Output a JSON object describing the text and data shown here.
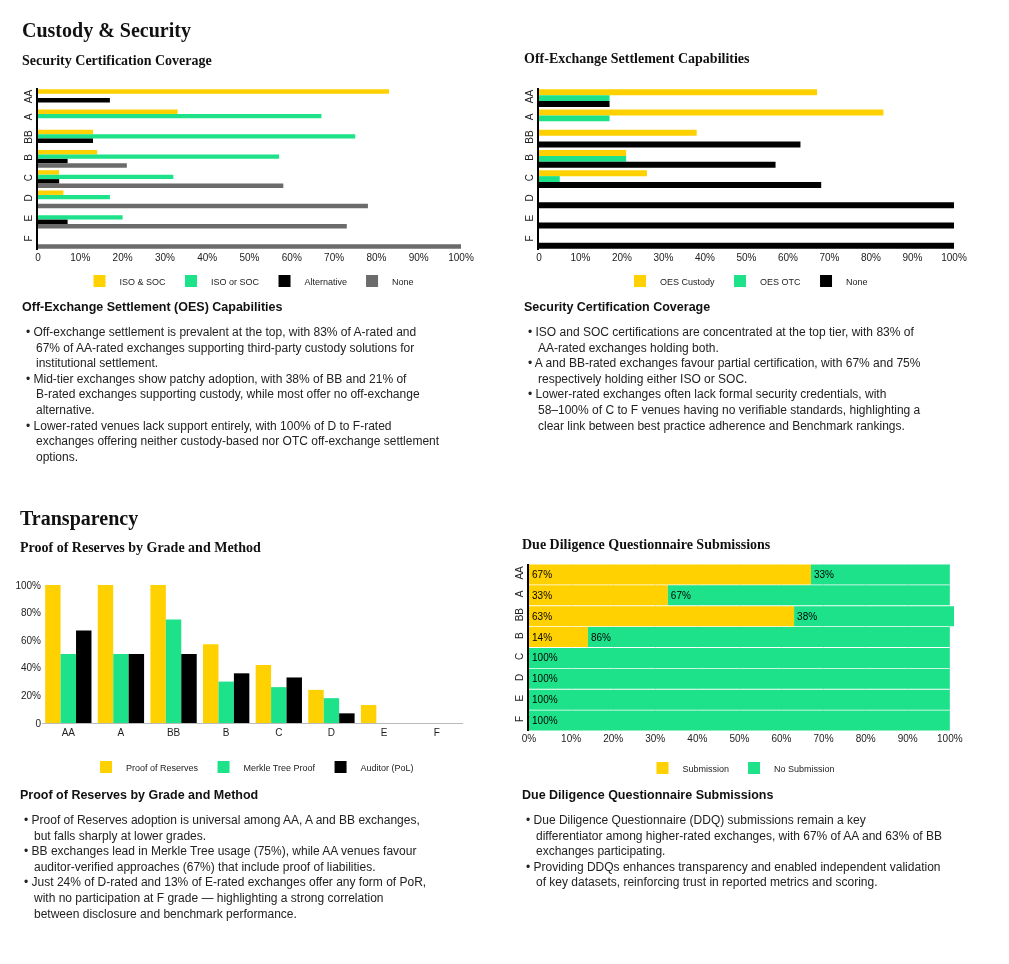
{
  "chart_data": [
    {
      "type": "bar",
      "orientation": "horizontal",
      "title": "Custody & Security",
      "subtitle": "Security Certification Coverage",
      "categories": [
        "AA",
        "A",
        "BB",
        "B",
        "C",
        "D",
        "E",
        "F"
      ],
      "series": [
        {
          "name": "ISO & SOC",
          "color": "#ffd100",
          "values": [
            83,
            33,
            13,
            14,
            5,
            6,
            null,
            null
          ]
        },
        {
          "name": "ISO or SOC",
          "color": "#1de28a",
          "values": [
            null,
            67,
            75,
            57,
            32,
            17,
            20,
            null
          ]
        },
        {
          "name": "Alternative",
          "color": "#000000",
          "values": [
            17,
            null,
            13,
            7,
            5,
            null,
            7,
            null
          ]
        },
        {
          "name": "None",
          "color": "#6b6b6b",
          "values": [
            null,
            null,
            null,
            21,
            58,
            78,
            73,
            100
          ]
        }
      ],
      "xlim": [
        0,
        100
      ],
      "xticks": [
        0,
        {
          "value": 10,
          "label": "10%"
        },
        {
          "value": 20,
          "label": "20%"
        },
        {
          "value": 30,
          "label": "30%"
        },
        {
          "value": 40,
          "label": "40%"
        },
        {
          "value": 50,
          "label": "50%"
        },
        {
          "value": 60,
          "label": "60%"
        },
        {
          "value": 70,
          "label": "70%"
        },
        {
          "value": 80,
          "label": "80%"
        },
        {
          "value": 90,
          "label": "90%"
        },
        {
          "value": 100,
          "label": "100%"
        }
      ],
      "legend": "bottom",
      "annotations": [
        "Off-Exchange Settlement (OES) Capabilities",
        "• Off-exchange settlement is prevalent at the top, with 83% of A-rated and 67% of AA-rated exchanges supporting third-party custody solutions for institutional settlement.",
        "• Mid-tier exchanges show patchy adoption, with 38% of BB and 21% of B-rated exchanges supporting custody, while most offer no off-exchange alternative.",
        "• Lower-rated venues lack support entirely, with 100% of D to F-rated exchanges offering neither custody-based nor OTC off-exchange settlement options."
      ]
    },
    {
      "type": "bar",
      "orientation": "horizontal",
      "subtitle": "Off-Exchange Settlement Capabilities",
      "categories": [
        "AA",
        "A",
        "BB",
        "B",
        "C",
        "D",
        "E",
        "F"
      ],
      "series": [
        {
          "name": "OES Custody",
          "color": "#ffd100",
          "values": [
            67,
            83,
            38,
            21,
            26,
            null,
            null,
            null
          ]
        },
        {
          "name": "OES OTC",
          "color": "#1de28a",
          "values": [
            17,
            17,
            null,
            21,
            5,
            null,
            null,
            null
          ]
        },
        {
          "name": "None",
          "color": "#000000",
          "values": [
            17,
            null,
            63,
            57,
            68,
            100,
            100,
            100
          ]
        }
      ],
      "xlim": [
        0,
        100
      ],
      "xticks": [
        0,
        {
          "value": 10,
          "label": "10%"
        },
        {
          "value": 20,
          "label": "20%"
        },
        {
          "value": 30,
          "label": "30%"
        },
        {
          "value": 40,
          "label": "40%"
        },
        {
          "value": 50,
          "label": "50%"
        },
        {
          "value": 60,
          "label": "60%"
        },
        {
          "value": 70,
          "label": "70%"
        },
        {
          "value": 80,
          "label": "80%"
        },
        {
          "value": 90,
          "label": "90%"
        },
        {
          "value": 100,
          "label": "100%"
        }
      ],
      "legend": "bottom",
      "annotations": [
        "Security Certification Coverage",
        "• ISO and SOC certifications are concentrated at the top tier, with 83% of AA-rated exchanges holding both.",
        "• A and BB-rated exchanges favour partial certification, with 67% and 75% respectively holding either ISO or SOC.",
        "• Lower-rated exchanges often lack formal security credentials, with 58–100% of C to F venues having no verifiable standards, highlighting a clear link between best practice adherence and Benchmark rankings."
      ]
    },
    {
      "type": "bar",
      "title": "Transparency",
      "subtitle": "Proof of Reserves by Grade and Method",
      "categories": [
        "AA",
        "A",
        "BB",
        "B",
        "C",
        "D",
        "E",
        "F"
      ],
      "series": [
        {
          "name": "Proof of Reserves",
          "color": "#ffd100",
          "values": [
            100,
            100,
            100,
            57,
            42,
            24,
            13,
            0
          ]
        },
        {
          "name": "Merkle Tree Proof",
          "color": "#1de28a",
          "values": [
            50,
            50,
            75,
            30,
            26,
            18,
            0,
            0
          ]
        },
        {
          "name": "Auditor (PoL)",
          "color": "#000000",
          "values": [
            67,
            50,
            50,
            36,
            33,
            7,
            0,
            0
          ]
        }
      ],
      "ylim": [
        0,
        100
      ],
      "yticks": [
        0,
        {
          "value": 20,
          "label": "20%"
        },
        {
          "value": 40,
          "label": "40%"
        },
        {
          "value": 60,
          "label": "60%"
        },
        {
          "value": 80,
          "label": "80%"
        },
        {
          "value": 100,
          "label": "100%"
        }
      ],
      "legend": "bottom",
      "annotations": [
        "Proof of Reserves by Grade and Method",
        "• Proof of Reserves adoption is universal among AA, A and BB exchanges, but falls sharply at lower grades.",
        "• BB exchanges lead in Merkle Tree usage (75%), while AA venues favour auditor-verified approaches (67%) that include proof of liabilities.",
        "• Just 24% of D-rated and 13% of E-rated exchanges offer any form of PoR, with no participation at F grade — highlighting a strong correlation between disclosure and benchmark performance."
      ]
    },
    {
      "type": "bar",
      "orientation": "horizontal",
      "stacked": true,
      "subtitle": "Due Diligence Questionnaire Submissions",
      "categories": [
        "AA",
        "A",
        "BB",
        "B",
        "C",
        "D",
        "E",
        "F"
      ],
      "series": [
        {
          "name": "Submission",
          "color": "#ffd100",
          "values": [
            67,
            33,
            63,
            14,
            0,
            0,
            0,
            0
          ],
          "value_labels": [
            "67%",
            "33%",
            "63%",
            "14%",
            null,
            null,
            null,
            null
          ]
        },
        {
          "name": "No Submission",
          "color": "#1de28a",
          "values": [
            33,
            67,
            38,
            86,
            100,
            100,
            100,
            100
          ],
          "value_labels": [
            "33%",
            "67%",
            "38%",
            "86%",
            "100%",
            "100%",
            "100%",
            "100%"
          ]
        }
      ],
      "xlim": [
        0,
        101
      ],
      "xticks": [
        {
          "value": 0,
          "label": "0%"
        },
        {
          "value": 10,
          "label": "10%"
        },
        {
          "value": 20,
          "label": "20%"
        },
        {
          "value": 30,
          "label": "30%"
        },
        {
          "value": 40,
          "label": "40%"
        },
        {
          "value": 50,
          "label": "50%"
        },
        {
          "value": 60,
          "label": "60%"
        },
        {
          "value": 70,
          "label": "70%"
        },
        {
          "value": 80,
          "label": "80%"
        },
        {
          "value": 90,
          "label": "90%"
        },
        {
          "value": 100,
          "label": "100%"
        }
      ],
      "grid": "x",
      "legend": "bottom",
      "annotations": [
        "Due Diligence Questionnaire Submissions",
        "• Due Diligence Questionnaire (DDQ) submissions remain a key differentiator among higher-rated exchanges, with 67% of AA and 63% of BB exchanges participating.",
        "• Providing DDQs enhances transparency and enabled independent validation of key datasets, reinforcing trust in reported metrics and scoring."
      ]
    }
  ]
}
